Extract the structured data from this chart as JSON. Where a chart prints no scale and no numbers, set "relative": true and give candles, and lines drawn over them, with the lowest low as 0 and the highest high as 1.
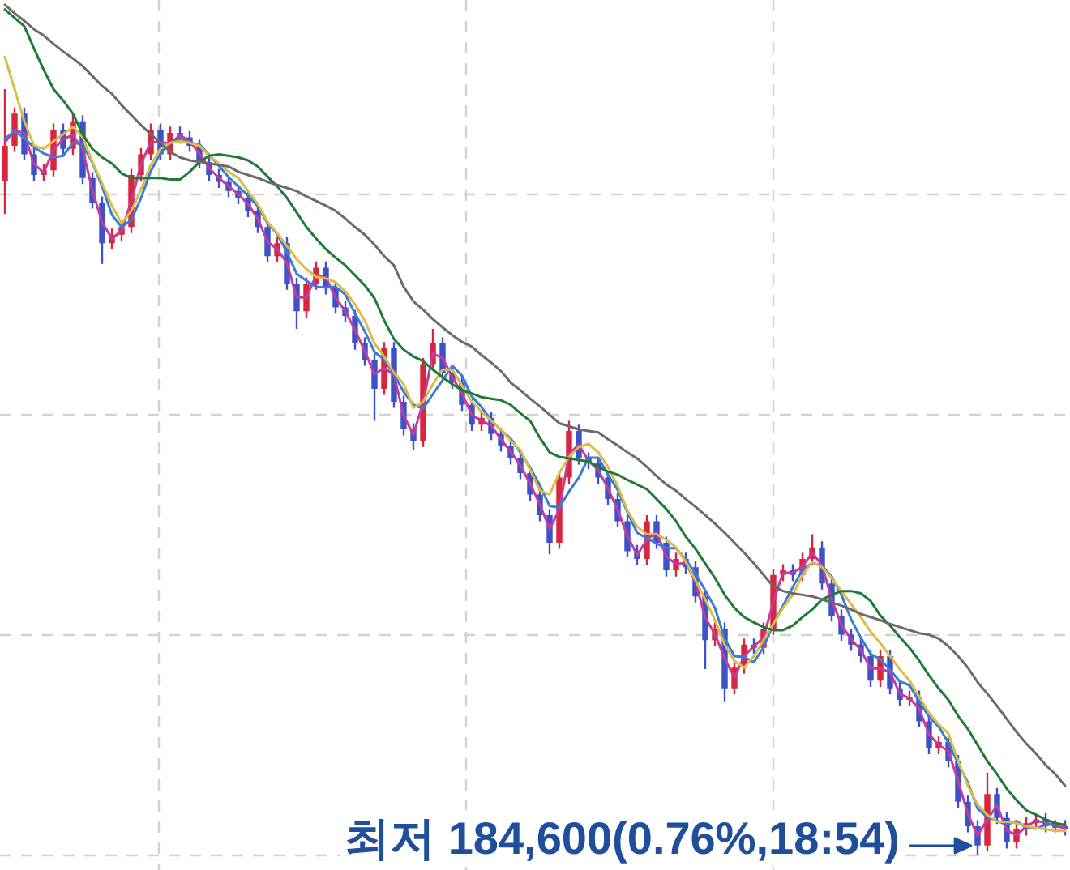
{
  "chart_data": {
    "type": "candlestick",
    "relative": true,
    "grid": true,
    "categories": [
      null,
      null,
      null,
      null,
      null,
      null,
      null,
      null,
      null,
      null,
      null,
      null,
      null,
      null,
      null,
      null,
      null,
      null,
      null,
      null,
      null,
      null,
      null,
      null,
      null,
      null,
      null,
      null,
      null,
      null,
      null,
      null,
      null,
      null,
      null,
      null,
      null,
      null,
      null,
      null,
      null,
      null,
      null,
      null,
      null,
      null,
      null,
      null,
      null,
      null,
      null,
      null,
      null,
      null,
      null,
      null,
      null,
      null,
      null,
      null,
      null,
      null,
      null,
      null,
      null,
      null,
      null,
      null,
      null,
      null,
      null,
      null,
      null,
      null,
      null,
      null,
      null,
      null,
      null,
      null,
      null,
      null,
      null,
      null,
      null,
      null,
      null,
      null,
      null,
      null,
      null,
      null,
      null,
      null,
      null,
      null,
      null,
      null,
      null,
      null,
      null,
      null,
      null,
      null,
      null,
      null,
      null,
      null,
      null,
      null
    ],
    "ohlc": [
      [
        0.88,
        1.0,
        0.837,
        0.926
      ],
      [
        0.926,
        0.976,
        0.918,
        0.968
      ],
      [
        0.968,
        0.976,
        0.907,
        0.915
      ],
      [
        0.915,
        0.923,
        0.88,
        0.888
      ],
      [
        0.888,
        0.902,
        0.88,
        0.894
      ],
      [
        0.894,
        0.955,
        0.886,
        0.947
      ],
      [
        0.947,
        0.955,
        0.914,
        0.922
      ],
      [
        0.922,
        0.966,
        0.914,
        0.958
      ],
      [
        0.958,
        0.966,
        0.876,
        0.884
      ],
      [
        0.884,
        0.892,
        0.844,
        0.852
      ],
      [
        0.852,
        0.86,
        0.772,
        0.799
      ],
      [
        0.799,
        0.818,
        0.791,
        0.81
      ],
      [
        0.81,
        0.828,
        0.802,
        0.82
      ],
      [
        0.82,
        0.896,
        0.812,
        0.888
      ],
      [
        0.888,
        0.923,
        0.88,
        0.915
      ],
      [
        0.915,
        0.955,
        0.907,
        0.947
      ],
      [
        0.947,
        0.955,
        0.907,
        0.915
      ],
      [
        0.915,
        0.951,
        0.907,
        0.943
      ],
      [
        0.943,
        0.951,
        0.929,
        0.937
      ],
      [
        0.937,
        0.945,
        0.918,
        0.926
      ],
      [
        0.926,
        0.934,
        0.897,
        0.905
      ],
      [
        0.905,
        0.913,
        0.88,
        0.888
      ],
      [
        0.888,
        0.896,
        0.871,
        0.879
      ],
      [
        0.879,
        0.887,
        0.859,
        0.867
      ],
      [
        0.867,
        0.875,
        0.85,
        0.858
      ],
      [
        0.858,
        0.866,
        0.833,
        0.841
      ],
      [
        0.841,
        0.849,
        0.812,
        0.82
      ],
      [
        0.82,
        0.828,
        0.774,
        0.782
      ],
      [
        0.782,
        0.807,
        0.774,
        0.799
      ],
      [
        0.799,
        0.807,
        0.738,
        0.746
      ],
      [
        0.746,
        0.754,
        0.687,
        0.71
      ],
      [
        0.71,
        0.754,
        0.702,
        0.746
      ],
      [
        0.746,
        0.775,
        0.738,
        0.767
      ],
      [
        0.767,
        0.775,
        0.732,
        0.74
      ],
      [
        0.74,
        0.748,
        0.707,
        0.715
      ],
      [
        0.715,
        0.723,
        0.696,
        0.704
      ],
      [
        0.704,
        0.712,
        0.66,
        0.668
      ],
      [
        0.668,
        0.676,
        0.639,
        0.647
      ],
      [
        0.647,
        0.655,
        0.567,
        0.609
      ],
      [
        0.609,
        0.67,
        0.601,
        0.662
      ],
      [
        0.662,
        0.67,
        0.584,
        0.592
      ],
      [
        0.592,
        0.6,
        0.548,
        0.556
      ],
      [
        0.556,
        0.564,
        0.529,
        0.541
      ],
      [
        0.541,
        0.649,
        0.533,
        0.641
      ],
      [
        0.641,
        0.687,
        0.633,
        0.668
      ],
      [
        0.668,
        0.676,
        0.622,
        0.63
      ],
      [
        0.63,
        0.638,
        0.609,
        0.617
      ],
      [
        0.617,
        0.625,
        0.58,
        0.588
      ],
      [
        0.588,
        0.596,
        0.554,
        0.562
      ],
      [
        0.562,
        0.579,
        0.554,
        0.571
      ],
      [
        0.571,
        0.579,
        0.542,
        0.55
      ],
      [
        0.55,
        0.558,
        0.527,
        0.535
      ],
      [
        0.535,
        0.543,
        0.51,
        0.518
      ],
      [
        0.518,
        0.526,
        0.491,
        0.499
      ],
      [
        0.499,
        0.507,
        0.463,
        0.471
      ],
      [
        0.471,
        0.479,
        0.436,
        0.444
      ],
      [
        0.444,
        0.452,
        0.393,
        0.408
      ],
      [
        0.408,
        0.501,
        0.4,
        0.493
      ],
      [
        0.493,
        0.567,
        0.485,
        0.554
      ],
      [
        0.554,
        0.562,
        0.51,
        0.518
      ],
      [
        0.518,
        0.526,
        0.504,
        0.512
      ],
      [
        0.512,
        0.52,
        0.485,
        0.493
      ],
      [
        0.493,
        0.501,
        0.457,
        0.465
      ],
      [
        0.465,
        0.473,
        0.428,
        0.436
      ],
      [
        0.436,
        0.444,
        0.389,
        0.397
      ],
      [
        0.397,
        0.405,
        0.379,
        0.387
      ],
      [
        0.387,
        0.444,
        0.379,
        0.436
      ],
      [
        0.436,
        0.444,
        0.4,
        0.408
      ],
      [
        0.408,
        0.416,
        0.364,
        0.372
      ],
      [
        0.372,
        0.395,
        0.364,
        0.387
      ],
      [
        0.387,
        0.395,
        0.368,
        0.376
      ],
      [
        0.376,
        0.384,
        0.33,
        0.338
      ],
      [
        0.338,
        0.346,
        0.243,
        0.281
      ],
      [
        0.281,
        0.304,
        0.273,
        0.296
      ],
      [
        0.296,
        0.304,
        0.201,
        0.218
      ],
      [
        0.218,
        0.253,
        0.21,
        0.245
      ],
      [
        0.245,
        0.283,
        0.237,
        0.275
      ],
      [
        0.275,
        0.283,
        0.263,
        0.271
      ],
      [
        0.271,
        0.304,
        0.263,
        0.296
      ],
      [
        0.296,
        0.374,
        0.288,
        0.366
      ],
      [
        0.366,
        0.38,
        0.358,
        0.372
      ],
      [
        0.372,
        0.38,
        0.358,
        0.366
      ],
      [
        0.366,
        0.395,
        0.358,
        0.387
      ],
      [
        0.387,
        0.419,
        0.379,
        0.402
      ],
      [
        0.402,
        0.41,
        0.347,
        0.355
      ],
      [
        0.355,
        0.363,
        0.305,
        0.313
      ],
      [
        0.313,
        0.321,
        0.28,
        0.288
      ],
      [
        0.288,
        0.296,
        0.267,
        0.275
      ],
      [
        0.275,
        0.283,
        0.252,
        0.26
      ],
      [
        0.26,
        0.268,
        0.22,
        0.228
      ],
      [
        0.228,
        0.268,
        0.22,
        0.26
      ],
      [
        0.26,
        0.268,
        0.21,
        0.218
      ],
      [
        0.218,
        0.226,
        0.195,
        0.203
      ],
      [
        0.203,
        0.215,
        0.195,
        0.207
      ],
      [
        0.207,
        0.215,
        0.167,
        0.175
      ],
      [
        0.175,
        0.183,
        0.132,
        0.14
      ],
      [
        0.14,
        0.156,
        0.132,
        0.148
      ],
      [
        0.148,
        0.156,
        0.115,
        0.123
      ],
      [
        0.123,
        0.131,
        0.062,
        0.07
      ],
      [
        0.07,
        0.078,
        0.03,
        0.038
      ],
      [
        0.038,
        0.046,
        0.0,
        0.013
      ],
      [
        0.013,
        0.108,
        0.005,
        0.08
      ],
      [
        0.08,
        0.088,
        0.041,
        0.049
      ],
      [
        0.049,
        0.057,
        0.009,
        0.017
      ],
      [
        0.017,
        0.042,
        0.009,
        0.034
      ],
      [
        0.034,
        0.05,
        0.026,
        0.042
      ],
      [
        0.042,
        0.055,
        0.034,
        0.047
      ],
      [
        0.047,
        0.055,
        0.03,
        0.038
      ],
      [
        0.038,
        0.046,
        0.03,
        0.038
      ],
      [
        0.038,
        0.046,
        0.026,
        0.034
      ]
    ],
    "colors": [
      "#d7263d",
      "#d7263d",
      "#3f51c6",
      "#3f51c6",
      "#d7263d",
      "#d7263d",
      "#3f51c6",
      "#d7263d",
      "#3f51c6",
      "#3f51c6",
      "#3f51c6",
      "#d7263d",
      "#d7263d",
      "#d7263d",
      "#d7263d",
      "#d7263d",
      "#3f51c6",
      "#d7263d",
      "#3f51c6",
      "#3f51c6",
      "#3f51c6",
      "#3f51c6",
      "#3f51c6",
      "#3f51c6",
      "#3f51c6",
      "#3f51c6",
      "#3f51c6",
      "#3f51c6",
      "#d7263d",
      "#3f51c6",
      "#3f51c6",
      "#d7263d",
      "#d7263d",
      "#3f51c6",
      "#3f51c6",
      "#3f51c6",
      "#3f51c6",
      "#3f51c6",
      "#3f51c6",
      "#d7263d",
      "#3f51c6",
      "#3f51c6",
      "#3f51c6",
      "#d7263d",
      "#d7263d",
      "#3f51c6",
      "#3f51c6",
      "#3f51c6",
      "#3f51c6",
      "#d7263d",
      "#3f51c6",
      "#3f51c6",
      "#3f51c6",
      "#3f51c6",
      "#3f51c6",
      "#3f51c6",
      "#3f51c6",
      "#d7263d",
      "#d7263d",
      "#3f51c6",
      "#3f51c6",
      "#3f51c6",
      "#3f51c6",
      "#3f51c6",
      "#3f51c6",
      "#3f51c6",
      "#d7263d",
      "#3f51c6",
      "#3f51c6",
      "#d7263d",
      "#3f51c6",
      "#3f51c6",
      "#3f51c6",
      "#d7263d",
      "#3f51c6",
      "#d7263d",
      "#d7263d",
      "#3f51c6",
      "#d7263d",
      "#d7263d",
      "#d7263d",
      "#3f51c6",
      "#d7263d",
      "#d7263d",
      "#3f51c6",
      "#3f51c6",
      "#3f51c6",
      "#3f51c6",
      "#3f51c6",
      "#3f51c6",
      "#d7263d",
      "#3f51c6",
      "#3f51c6",
      "#d7263d",
      "#3f51c6",
      "#3f51c6",
      "#d7263d",
      "#3f51c6",
      "#3f51c6",
      "#3f51c6",
      "#3f51c6",
      "#d7263d",
      "#3f51c6",
      "#3f51c6",
      "#d7263d",
      "#d7263d",
      "#d7263d",
      "#3f51c6",
      "#3f51c6",
      "#3f51c6"
    ],
    "series": [
      {
        "type": "line",
        "color": "#c23b9e",
        "values": [
          0.93,
          0.947,
          0.942,
          0.902,
          0.891,
          0.921,
          0.935,
          0.94,
          0.921,
          0.868,
          0.826,
          0.805,
          0.815,
          0.854,
          0.902,
          0.931,
          0.931,
          0.929,
          0.94,
          0.932,
          0.916,
          0.897,
          0.884,
          0.873,
          0.863,
          0.85,
          0.831,
          0.801,
          0.791,
          0.773,
          0.728,
          0.728,
          0.757,
          0.754,
          0.728,
          0.71,
          0.686,
          0.658,
          0.628,
          0.636,
          0.627,
          0.574,
          0.549,
          0.591,
          0.655,
          0.649,
          0.624,
          0.603,
          0.575,
          0.567,
          0.561,
          0.543,
          0.527,
          0.509,
          0.485,
          0.458,
          0.426,
          0.451,
          0.524,
          0.536,
          0.515,
          0.503,
          0.479,
          0.451,
          0.417,
          0.392,
          0.412,
          0.422,
          0.39,
          0.38,
          0.382,
          0.357,
          0.31,
          0.289,
          0.257,
          0.232,
          0.26,
          0.273,
          0.284,
          0.331,
          0.369,
          0.369,
          0.377,
          0.395,
          0.379,
          0.334,
          0.301,
          0.282,
          0.268,
          0.244,
          0.244,
          0.239,
          0.211,
          0.205,
          0.191,
          0.158,
          0.144,
          0.136,
          0.097,
          0.054,
          0.026,
          0.047,
          0.065,
          0.033,
          0.026,
          0.038,
          0.045,
          0.043,
          0.038,
          0.036
        ]
      },
      {
        "type": "line",
        "color": "#3a7bd9",
        "values": [
          0.935,
          0.945,
          0.936,
          0.924,
          0.916,
          0.911,
          0.913,
          0.93,
          0.928,
          0.904,
          0.873,
          0.836,
          0.82,
          0.829,
          0.858,
          0.893,
          0.916,
          0.93,
          0.936,
          0.93,
          0.928,
          0.914,
          0.9,
          0.885,
          0.873,
          0.861,
          0.847,
          0.825,
          0.811,
          0.787,
          0.759,
          0.75,
          0.742,
          0.741,
          0.742,
          0.732,
          0.707,
          0.684,
          0.657,
          0.647,
          0.628,
          0.605,
          0.588,
          0.583,
          0.602,
          0.62,
          0.639,
          0.626,
          0.599,
          0.585,
          0.568,
          0.555,
          0.544,
          0.526,
          0.506,
          0.483,
          0.456,
          0.454,
          0.475,
          0.493,
          0.519,
          0.519,
          0.497,
          0.477,
          0.448,
          0.421,
          0.414,
          0.407,
          0.401,
          0.401,
          0.386,
          0.368,
          0.346,
          0.323,
          0.283,
          0.26,
          0.259,
          0.252,
          0.272,
          0.302,
          0.326,
          0.35,
          0.373,
          0.382,
          0.378,
          0.364,
          0.34,
          0.308,
          0.284,
          0.263,
          0.256,
          0.242,
          0.227,
          0.222,
          0.201,
          0.181,
          0.168,
          0.147,
          0.12,
          0.095,
          0.061,
          0.05,
          0.045,
          0.04,
          0.045,
          0.036,
          0.035,
          0.04,
          0.041,
          0.039
        ]
      },
      {
        "type": "line",
        "color": "#dcbc45",
        "values": [
          1.042,
          1.0,
          0.958,
          0.926,
          0.922,
          0.932,
          0.941,
          0.951,
          0.937,
          0.905,
          0.877,
          0.848,
          0.825,
          0.841,
          0.869,
          0.901,
          0.922,
          0.93,
          0.932,
          0.93,
          0.926,
          0.913,
          0.903,
          0.892,
          0.884,
          0.867,
          0.85,
          0.827,
          0.812,
          0.795,
          0.778,
          0.765,
          0.755,
          0.753,
          0.748,
          0.736,
          0.719,
          0.698,
          0.668,
          0.651,
          0.63,
          0.615,
          0.584,
          0.592,
          0.615,
          0.634,
          0.634,
          0.613,
          0.592,
          0.579,
          0.567,
          0.556,
          0.541,
          0.529,
          0.503,
          0.476,
          0.471,
          0.499,
          0.52,
          0.533,
          0.537,
          0.526,
          0.507,
          0.482,
          0.45,
          0.429,
          0.419,
          0.419,
          0.412,
          0.402,
          0.383,
          0.359,
          0.334,
          0.307,
          0.275,
          0.254,
          0.245,
          0.26,
          0.281,
          0.302,
          0.323,
          0.34,
          0.366,
          0.383,
          0.376,
          0.362,
          0.345,
          0.328,
          0.311,
          0.292,
          0.277,
          0.26,
          0.243,
          0.228,
          0.207,
          0.186,
          0.171,
          0.159,
          0.123,
          0.091,
          0.066,
          0.053,
          0.044,
          0.044,
          0.042,
          0.038,
          0.036,
          0.034,
          0.032,
          0.032
        ]
      },
      {
        "type": "line",
        "color": "#1f7a35",
        "values": [
          1.104,
          1.093,
          1.082,
          1.053,
          1.025,
          1.0,
          0.985,
          0.968,
          0.941,
          0.922,
          0.911,
          0.903,
          0.89,
          0.884,
          0.884,
          0.884,
          0.884,
          0.882,
          0.882,
          0.892,
          0.905,
          0.913,
          0.915,
          0.913,
          0.911,
          0.907,
          0.899,
          0.886,
          0.873,
          0.858,
          0.839,
          0.82,
          0.805,
          0.791,
          0.78,
          0.77,
          0.757,
          0.744,
          0.727,
          0.698,
          0.674,
          0.66,
          0.651,
          0.645,
          0.634,
          0.624,
          0.615,
          0.607,
          0.603,
          0.598,
          0.596,
          0.594,
          0.588,
          0.577,
          0.567,
          0.545,
          0.526,
          0.52,
          0.518,
          0.516,
          0.514,
          0.507,
          0.501,
          0.497,
          0.49,
          0.484,
          0.478,
          0.465,
          0.452,
          0.436,
          0.416,
          0.4,
          0.381,
          0.362,
          0.34,
          0.323,
          0.311,
          0.304,
          0.298,
          0.294,
          0.294,
          0.3,
          0.311,
          0.321,
          0.334,
          0.34,
          0.345,
          0.345,
          0.342,
          0.332,
          0.313,
          0.3,
          0.285,
          0.271,
          0.254,
          0.235,
          0.218,
          0.203,
          0.182,
          0.165,
          0.144,
          0.123,
          0.106,
          0.087,
          0.072,
          0.059,
          0.053,
          0.047,
          0.042,
          0.04
        ]
      },
      {
        "type": "line",
        "color": "#6b6b6b",
        "values": [
          1.11,
          1.099,
          1.089,
          1.078,
          1.07,
          1.059,
          1.049,
          1.04,
          1.03,
          1.017,
          1.004,
          0.994,
          0.979,
          0.966,
          0.953,
          0.941,
          0.93,
          0.918,
          0.911,
          0.907,
          0.905,
          0.903,
          0.901,
          0.899,
          0.892,
          0.888,
          0.884,
          0.879,
          0.875,
          0.871,
          0.867,
          0.86,
          0.854,
          0.848,
          0.841,
          0.831,
          0.82,
          0.81,
          0.797,
          0.782,
          0.77,
          0.742,
          0.723,
          0.712,
          0.7,
          0.689,
          0.679,
          0.67,
          0.664,
          0.653,
          0.643,
          0.632,
          0.617,
          0.607,
          0.596,
          0.586,
          0.575,
          0.564,
          0.56,
          0.556,
          0.554,
          0.552,
          0.543,
          0.535,
          0.526,
          0.518,
          0.507,
          0.495,
          0.484,
          0.476,
          0.465,
          0.455,
          0.444,
          0.433,
          0.421,
          0.408,
          0.395,
          0.381,
          0.366,
          0.351,
          0.345,
          0.342,
          0.34,
          0.338,
          0.334,
          0.33,
          0.326,
          0.321,
          0.315,
          0.311,
          0.307,
          0.302,
          0.298,
          0.294,
          0.29,
          0.288,
          0.283,
          0.273,
          0.26,
          0.245,
          0.226,
          0.211,
          0.195,
          0.178,
          0.161,
          0.146,
          0.133,
          0.118,
          0.106,
          0.091
        ]
      }
    ],
    "annotations": [
      "최저 184,600(0.76%,18:54)"
    ]
  }
}
